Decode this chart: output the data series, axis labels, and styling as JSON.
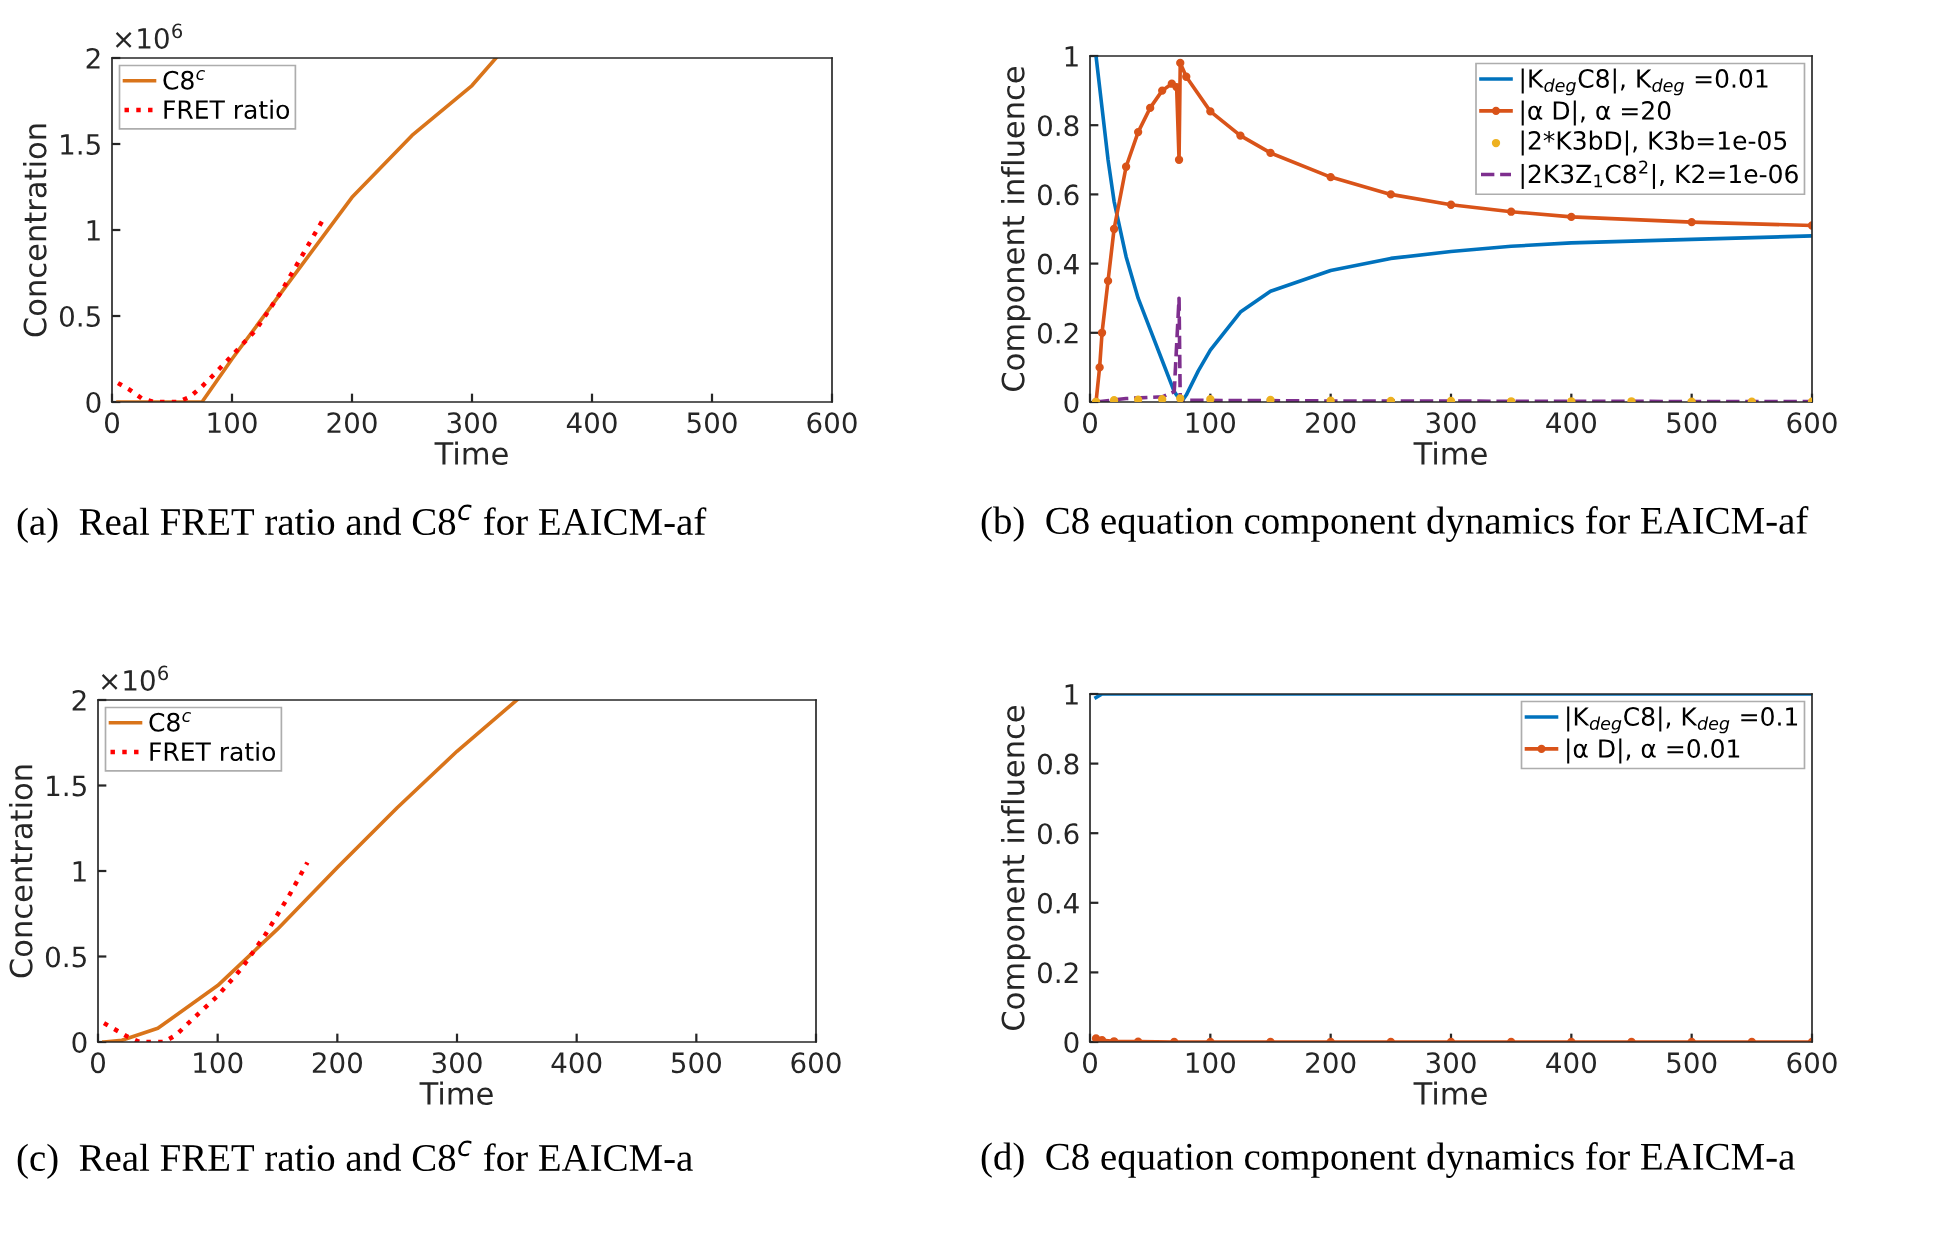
{
  "chart_data": [
    {
      "type": "line",
      "xlabel": "Time",
      "ylabel": "Concentration",
      "xlim": [
        0,
        600
      ],
      "xticks": [
        0,
        100,
        200,
        300,
        400,
        500,
        600
      ],
      "ylim": [
        0,
        2
      ],
      "yticks": [
        0,
        0.5,
        1,
        1.5,
        2
      ],
      "legend": "top left",
      "grid": false,
      "annotations": [
        "×10$^{6}$",
        "(a)  Real FRET ratio and C8$^{c}$ for EAICM-af"
      ],
      "series": [
        {
          "name": "C8$^{c}$",
          "color": "#d9741a",
          "line_style": "solid",
          "x": [
            5,
            75,
            100,
            150,
            200,
            250,
            300,
            320
          ],
          "values": [
            0,
            0,
            0.25,
            0.72,
            1.19,
            1.55,
            1.84,
            2.0
          ]
        },
        {
          "name": "FRET ratio",
          "color": "#ff0000",
          "line_style": "dotted",
          "x": [
            5,
            15,
            25,
            35,
            55,
            65,
            75,
            85,
            100,
            120,
            140,
            160,
            175
          ],
          "values": [
            0.11,
            0.07,
            0.02,
            0,
            0,
            0.03,
            0.09,
            0.16,
            0.27,
            0.42,
            0.63,
            0.87,
            1.05
          ]
        }
      ]
    },
    {
      "type": "line",
      "xlabel": "Time",
      "ylabel": "Component influence",
      "xlim": [
        0,
        600
      ],
      "xticks": [
        0,
        100,
        200,
        300,
        400,
        500,
        600
      ],
      "ylim": [
        0,
        1
      ],
      "yticks": [
        0,
        0.2,
        0.4,
        0.6,
        0.8,
        1
      ],
      "legend": "top right",
      "grid": false,
      "annotations": [
        "(b)  C8 equation component dynamics for EAICM-af"
      ],
      "series": [
        {
          "name": "|K$_{deg}$C8|, K$_{deg}$ =0.01",
          "color": "#0072bd",
          "line_style": "solid",
          "x": [
            5,
            10,
            15,
            20,
            30,
            40,
            50,
            60,
            70,
            74,
            76,
            80,
            90,
            100,
            125,
            150,
            200,
            250,
            300,
            350,
            400,
            500,
            600
          ],
          "values": [
            1.0,
            0.85,
            0.7,
            0.58,
            0.42,
            0.3,
            0.21,
            0.12,
            0.03,
            0.01,
            0.0,
            0.02,
            0.09,
            0.15,
            0.26,
            0.32,
            0.38,
            0.415,
            0.435,
            0.45,
            0.46,
            0.47,
            0.48
          ]
        },
        {
          "name": "|α D|, α =20",
          "color": "#d95319",
          "line_style": "solid",
          "marker": "circle",
          "x": [
            5,
            8,
            10,
            15,
            20,
            30,
            40,
            50,
            60,
            68,
            72,
            74,
            75,
            80,
            100,
            125,
            150,
            200,
            250,
            300,
            350,
            400,
            500,
            600
          ],
          "values": [
            0,
            0.1,
            0.2,
            0.35,
            0.5,
            0.68,
            0.78,
            0.85,
            0.9,
            0.92,
            0.91,
            0.7,
            0.98,
            0.94,
            0.84,
            0.77,
            0.72,
            0.65,
            0.6,
            0.57,
            0.55,
            0.535,
            0.52,
            0.51
          ]
        },
        {
          "name": "|2*K3bD|, K3b=1e-05",
          "color": "#edb120",
          "type": "scatter",
          "marker": "circle",
          "x": [
            5,
            20,
            40,
            60,
            75,
            100,
            150,
            200,
            250,
            300,
            350,
            400,
            450,
            500,
            550,
            600
          ],
          "values": [
            0,
            0.005,
            0.007,
            0.008,
            0.01,
            0.008,
            0.006,
            0.004,
            0.003,
            0.003,
            0.002,
            0.002,
            0.002,
            0.001,
            0.001,
            0.001
          ]
        },
        {
          "name": "|2K3Z$_{1}$C8$^{2}$|, K2=1e-06",
          "color": "#7e2f8e",
          "line_style": "dashed",
          "x": [
            5,
            30,
            60,
            70,
            74,
            75,
            80,
            200,
            600
          ],
          "values": [
            0,
            0.01,
            0.015,
            0.03,
            0.3,
            0.0,
            0.005,
            0.003,
            0.001
          ]
        }
      ]
    },
    {
      "type": "line",
      "xlabel": "Time",
      "ylabel": "Concentration",
      "xlim": [
        0,
        600
      ],
      "xticks": [
        0,
        100,
        200,
        300,
        400,
        500,
        600
      ],
      "ylim": [
        0,
        2
      ],
      "yticks": [
        0,
        0.5,
        1,
        1.5,
        2
      ],
      "legend": "top left",
      "grid": false,
      "annotations": [
        "×10$^{6}$",
        "(c)  Real FRET ratio and C8$^{c}$ for EAICM-a"
      ],
      "series": [
        {
          "name": "C8$^{c}$",
          "color": "#d9741a",
          "line_style": "solid",
          "x": [
            5,
            20,
            50,
            100,
            150,
            200,
            250,
            300,
            350
          ],
          "values": [
            0,
            0.01,
            0.08,
            0.33,
            0.66,
            1.02,
            1.37,
            1.7,
            2.0
          ]
        },
        {
          "name": "FRET ratio",
          "color": "#ff0000",
          "line_style": "dotted",
          "x": [
            5,
            15,
            25,
            35,
            55,
            65,
            80,
            100,
            120,
            140,
            160,
            175
          ],
          "values": [
            0.11,
            0.07,
            0.03,
            0,
            0,
            0.04,
            0.14,
            0.27,
            0.43,
            0.63,
            0.86,
            1.05
          ]
        }
      ]
    },
    {
      "type": "line",
      "xlabel": "Time",
      "ylabel": "Component influence",
      "xlim": [
        0,
        600
      ],
      "xticks": [
        0,
        100,
        200,
        300,
        400,
        500,
        600
      ],
      "ylim": [
        0,
        1
      ],
      "yticks": [
        0,
        0.2,
        0.4,
        0.6,
        0.8,
        1
      ],
      "legend": "top right",
      "grid": false,
      "annotations": [
        "(d)  C8 equation component dynamics for EAICM-a"
      ],
      "series": [
        {
          "name": "|K$_{deg}$C8|, K$_{deg}$ =0.1",
          "color": "#0072bd",
          "line_style": "solid",
          "x": [
            5,
            10,
            600
          ],
          "values": [
            0.99,
            1.0,
            1.0
          ]
        },
        {
          "name": "|α D|, α =0.01",
          "color": "#d95319",
          "line_style": "solid",
          "marker": "circle",
          "x": [
            5,
            10,
            20,
            40,
            70,
            100,
            150,
            200,
            250,
            300,
            350,
            400,
            450,
            500,
            550,
            600
          ],
          "values": [
            0.01,
            0.005,
            0.002,
            0.001,
            0,
            0,
            0,
            0,
            0,
            0,
            0,
            0,
            0,
            0,
            0,
            0
          ]
        }
      ]
    }
  ]
}
